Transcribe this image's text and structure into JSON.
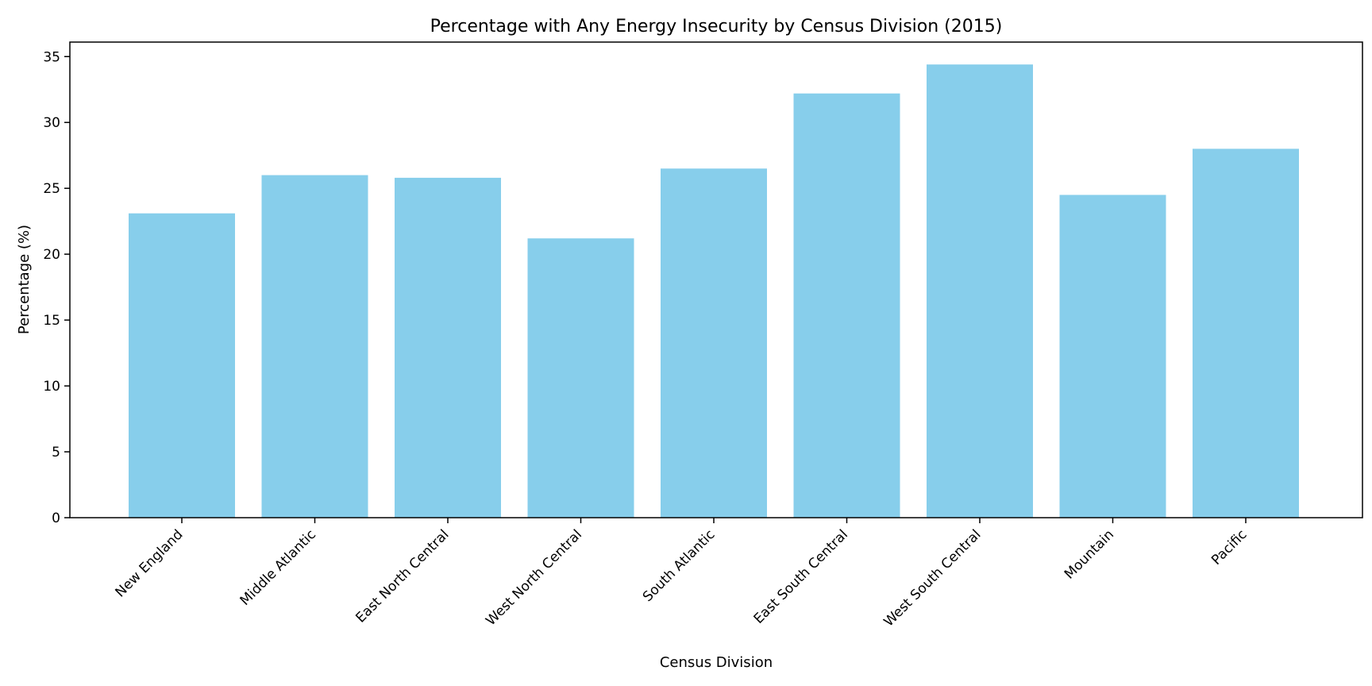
{
  "chart_data": {
    "type": "bar",
    "title": "Percentage with Any Energy Insecurity by Census Division (2015)",
    "xlabel": "Census Division",
    "ylabel": "Percentage (%)",
    "categories": [
      "New England",
      "Middle Atlantic",
      "East North Central",
      "West North Central",
      "South Atlantic",
      "East South Central",
      "West South Central",
      "Mountain",
      "Pacific"
    ],
    "values": [
      23.1,
      26.0,
      25.8,
      21.2,
      26.5,
      32.2,
      34.4,
      24.5,
      28.0
    ],
    "yticks": [
      "0",
      "5",
      "10",
      "15",
      "20",
      "25",
      "30",
      "35"
    ],
    "ylim": [
      0,
      36.1
    ],
    "grid": false,
    "legend": "none",
    "bar_color": "#87CEEB"
  }
}
